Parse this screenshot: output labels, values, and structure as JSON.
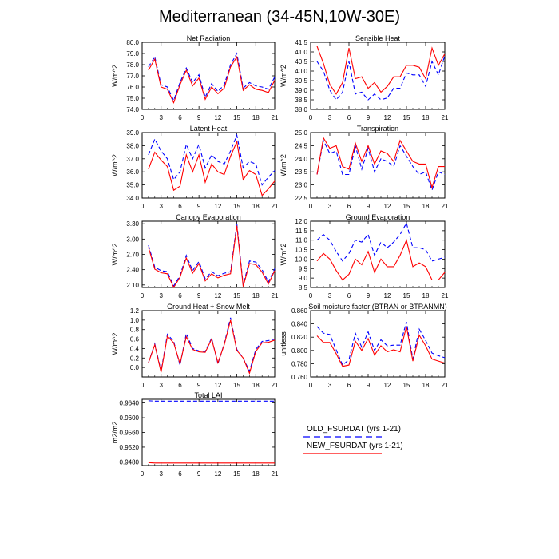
{
  "figure": {
    "title": "Mediterranean (34-45N,10W-30E)"
  },
  "legend": {
    "old_label": "OLD_FSURDAT (yrs 1-21)",
    "new_label": "NEW_FSURDAT (yrs 1-21)",
    "old_color": "#0000ff",
    "new_color": "#ff0000",
    "old_style": "dashed",
    "new_style": "solid"
  },
  "chart_data": [
    {
      "type": "line",
      "title": "Net Radiation",
      "ylabel": "W/m^2",
      "xlim": [
        0,
        21
      ],
      "ylim": [
        74.0,
        80.0
      ],
      "xticks": [
        0,
        3,
        6,
        9,
        12,
        15,
        18,
        21
      ],
      "yticks": [
        74.0,
        75.0,
        76.0,
        77.0,
        78.0,
        79.0,
        80.0
      ],
      "ytick_labels": [
        "74.0",
        "75.0",
        "76.0",
        "77.0",
        "78.0",
        "79.0",
        "80.0"
      ],
      "x": [
        1,
        2,
        3,
        4,
        5,
        6,
        7,
        8,
        9,
        10,
        11,
        12,
        13,
        14,
        15,
        16,
        17,
        18,
        19,
        20,
        21
      ],
      "series": [
        {
          "name": "OLD_FSURDAT (yrs 1-21)",
          "values": [
            77.8,
            78.7,
            76.2,
            76.0,
            74.8,
            76.4,
            77.7,
            76.4,
            77.1,
            75.1,
            76.3,
            75.6,
            76.2,
            78.0,
            79.0,
            75.9,
            76.4,
            76.1,
            76.0,
            75.8,
            76.9
          ]
        },
        {
          "name": "NEW_FSURDAT (yrs 1-21)",
          "values": [
            77.5,
            78.5,
            76.0,
            75.8,
            74.6,
            76.2,
            77.5,
            76.1,
            76.8,
            74.9,
            76.0,
            75.4,
            75.9,
            77.8,
            78.7,
            75.7,
            76.2,
            75.8,
            75.7,
            75.5,
            76.6
          ]
        }
      ]
    },
    {
      "type": "line",
      "title": "Sensible Heat",
      "ylabel": "W/m^2",
      "xlim": [
        0,
        21
      ],
      "ylim": [
        38.0,
        41.5
      ],
      "xticks": [
        0,
        3,
        6,
        9,
        12,
        15,
        18,
        21
      ],
      "yticks": [
        38.0,
        38.5,
        39.0,
        39.5,
        40.0,
        40.5,
        41.0,
        41.5
      ],
      "ytick_labels": [
        "38.0",
        "38.5",
        "39.0",
        "39.5",
        "40.0",
        "40.5",
        "41.0",
        "41.5"
      ],
      "x": [
        1,
        2,
        3,
        4,
        5,
        6,
        7,
        8,
        9,
        10,
        11,
        12,
        13,
        14,
        15,
        16,
        17,
        18,
        19,
        20,
        21
      ],
      "series": [
        {
          "name": "OLD_FSURDAT (yrs 1-21)",
          "values": [
            40.5,
            40.0,
            39.0,
            38.5,
            38.9,
            40.5,
            38.8,
            38.9,
            38.5,
            38.8,
            38.5,
            38.6,
            39.1,
            39.1,
            39.9,
            39.8,
            39.8,
            39.2,
            40.5,
            39.8,
            40.8
          ]
        },
        {
          "name": "NEW_FSURDAT (yrs 1-21)",
          "values": [
            41.3,
            40.4,
            39.3,
            38.8,
            39.4,
            41.2,
            39.6,
            39.7,
            39.1,
            39.4,
            38.9,
            39.2,
            39.7,
            39.7,
            40.3,
            40.3,
            40.2,
            39.6,
            41.2,
            40.3,
            40.9
          ]
        }
      ]
    },
    {
      "type": "line",
      "title": "Latent Heat",
      "ylabel": "W/m^2",
      "xlim": [
        0,
        21
      ],
      "ylim": [
        34.0,
        39.0
      ],
      "xticks": [
        0,
        3,
        6,
        9,
        12,
        15,
        18,
        21
      ],
      "yticks": [
        34.0,
        35.0,
        36.0,
        37.0,
        38.0,
        39.0
      ],
      "ytick_labels": [
        "34.0",
        "35.0",
        "36.0",
        "37.0",
        "38.0",
        "39.0"
      ],
      "x": [
        1,
        2,
        3,
        4,
        5,
        6,
        7,
        8,
        9,
        10,
        11,
        12,
        13,
        14,
        15,
        16,
        17,
        18,
        19,
        20,
        21
      ],
      "series": [
        {
          "name": "OLD_FSURDAT (yrs 1-21)",
          "values": [
            37.3,
            38.5,
            37.6,
            37.0,
            35.4,
            36.0,
            38.1,
            37.0,
            38.1,
            36.3,
            37.3,
            36.8,
            36.6,
            37.6,
            38.8,
            36.3,
            36.8,
            36.6,
            35.0,
            35.6,
            36.1
          ]
        },
        {
          "name": "NEW_FSURDAT (yrs 1-21)",
          "values": [
            36.2,
            37.5,
            36.9,
            36.4,
            34.6,
            34.9,
            37.3,
            36.0,
            37.3,
            35.2,
            36.6,
            36.0,
            35.8,
            37.2,
            38.3,
            35.4,
            36.1,
            35.8,
            34.2,
            34.7,
            35.3
          ]
        }
      ]
    },
    {
      "type": "line",
      "title": "Transpiration",
      "ylabel": "W/m^2",
      "xlim": [
        0,
        21
      ],
      "ylim": [
        22.5,
        25.0
      ],
      "xticks": [
        0,
        3,
        6,
        9,
        12,
        15,
        18,
        21
      ],
      "yticks": [
        22.5,
        23.0,
        23.5,
        24.0,
        24.5,
        25.0
      ],
      "ytick_labels": [
        "22.5",
        "23.0",
        "23.5",
        "24.0",
        "24.5",
        "25.0"
      ],
      "x": [
        1,
        2,
        3,
        4,
        5,
        6,
        7,
        8,
        9,
        10,
        11,
        12,
        13,
        14,
        15,
        16,
        17,
        18,
        19,
        20,
        21
      ],
      "series": [
        {
          "name": "OLD_FSURDAT (yrs 1-21)",
          "values": [
            23.4,
            24.7,
            24.2,
            24.3,
            23.4,
            23.4,
            24.5,
            23.6,
            24.4,
            23.5,
            24.0,
            23.9,
            23.7,
            24.5,
            24.1,
            23.7,
            23.4,
            23.5,
            22.8,
            23.5,
            23.4
          ]
        },
        {
          "name": "NEW_FSURDAT (yrs 1-21)",
          "values": [
            23.4,
            24.8,
            24.4,
            24.5,
            23.7,
            23.6,
            24.6,
            23.9,
            24.5,
            23.8,
            24.3,
            24.2,
            23.9,
            24.7,
            24.3,
            23.9,
            23.8,
            23.8,
            22.9,
            23.7,
            23.7
          ]
        }
      ]
    },
    {
      "type": "line",
      "title": "Canopy Evaporation",
      "ylabel": "W/m^2",
      "xlim": [
        0,
        21
      ],
      "ylim": [
        2.05,
        3.35
      ],
      "xticks": [
        0,
        3,
        6,
        9,
        12,
        15,
        18,
        21
      ],
      "yticks": [
        2.1,
        2.4,
        2.7,
        3.0,
        3.3
      ],
      "ytick_labels": [
        "2.10",
        "2.40",
        "2.70",
        "3.00",
        "3.30"
      ],
      "x": [
        1,
        2,
        3,
        4,
        5,
        6,
        7,
        8,
        9,
        10,
        11,
        12,
        13,
        14,
        15,
        16,
        17,
        18,
        19,
        20,
        21
      ],
      "series": [
        {
          "name": "OLD_FSURDAT (yrs 1-21)",
          "values": [
            2.88,
            2.45,
            2.38,
            2.36,
            2.08,
            2.28,
            2.68,
            2.38,
            2.56,
            2.22,
            2.36,
            2.28,
            2.33,
            2.36,
            3.3,
            2.1,
            2.57,
            2.55,
            2.4,
            2.16,
            2.42
          ]
        },
        {
          "name": "NEW_FSURDAT (yrs 1-21)",
          "values": [
            2.84,
            2.41,
            2.34,
            2.32,
            2.05,
            2.25,
            2.63,
            2.33,
            2.52,
            2.18,
            2.32,
            2.24,
            2.29,
            2.32,
            3.26,
            2.07,
            2.52,
            2.5,
            2.35,
            2.12,
            2.38
          ]
        }
      ]
    },
    {
      "type": "line",
      "title": "Ground Evaporation",
      "ylabel": "W/m^2",
      "xlim": [
        0,
        21
      ],
      "ylim": [
        8.5,
        12.0
      ],
      "xticks": [
        0,
        3,
        6,
        9,
        12,
        15,
        18,
        21
      ],
      "yticks": [
        8.5,
        9.0,
        9.5,
        10.0,
        10.5,
        11.0,
        11.5,
        12.0
      ],
      "ytick_labels": [
        "8.5",
        "9.0",
        "9.5",
        "10.0",
        "10.5",
        "11.0",
        "11.5",
        "12.0"
      ],
      "x": [
        1,
        2,
        3,
        4,
        5,
        6,
        7,
        8,
        9,
        10,
        11,
        12,
        13,
        14,
        15,
        16,
        17,
        18,
        19,
        20,
        21
      ],
      "series": [
        {
          "name": "OLD_FSURDAT (yrs 1-21)",
          "values": [
            11.0,
            11.3,
            11.0,
            10.4,
            9.9,
            10.3,
            11.0,
            10.9,
            11.3,
            10.2,
            10.9,
            10.6,
            10.9,
            11.3,
            11.9,
            10.6,
            10.6,
            10.5,
            9.9,
            10.0,
            10.1
          ]
        },
        {
          "name": "NEW_FSURDAT (yrs 1-21)",
          "values": [
            9.9,
            10.3,
            10.0,
            9.4,
            8.9,
            9.2,
            10.0,
            9.7,
            10.4,
            9.3,
            10.0,
            9.6,
            9.6,
            10.2,
            11.0,
            9.6,
            9.8,
            9.6,
            8.9,
            8.9,
            9.3
          ]
        }
      ]
    },
    {
      "type": "line",
      "title": "Ground Heat + Snow Melt",
      "ylabel": "W/m^2",
      "xlim": [
        0,
        21
      ],
      "ylim": [
        -0.2,
        1.2
      ],
      "xticks": [
        0,
        3,
        6,
        9,
        12,
        15,
        18,
        21
      ],
      "yticks": [
        0.0,
        0.2,
        0.4,
        0.6,
        0.8,
        1.0,
        1.2
      ],
      "ytick_labels": [
        "0.0",
        "0.2",
        "0.4",
        "0.6",
        "0.8",
        "1.0",
        "1.2"
      ],
      "x": [
        1,
        2,
        3,
        4,
        5,
        6,
        7,
        8,
        9,
        10,
        11,
        12,
        13,
        14,
        15,
        16,
        17,
        18,
        19,
        20,
        21
      ],
      "series": [
        {
          "name": "OLD_FSURDAT (yrs 1-21)",
          "values": [
            0.1,
            0.5,
            -0.08,
            0.7,
            0.55,
            0.05,
            0.72,
            0.4,
            0.35,
            0.34,
            0.62,
            0.08,
            0.5,
            1.05,
            0.38,
            0.2,
            -0.08,
            0.38,
            0.55,
            0.57,
            0.6
          ]
        },
        {
          "name": "NEW_FSURDAT (yrs 1-21)",
          "values": [
            0.1,
            0.48,
            -0.1,
            0.66,
            0.52,
            0.08,
            0.65,
            0.38,
            0.33,
            0.32,
            0.6,
            0.1,
            0.48,
            1.0,
            0.36,
            0.2,
            -0.12,
            0.34,
            0.52,
            0.53,
            0.58
          ]
        }
      ]
    },
    {
      "type": "line",
      "title": "Soil moisture factor (BTRAN or BTRANMN)",
      "ylabel": "unitless",
      "xlim": [
        0,
        21
      ],
      "ylim": [
        0.76,
        0.86
      ],
      "xticks": [
        0,
        3,
        6,
        9,
        12,
        15,
        18,
        21
      ],
      "yticks": [
        0.76,
        0.78,
        0.8,
        0.82,
        0.84,
        0.86
      ],
      "ytick_labels": [
        "0.760",
        "0.780",
        "0.800",
        "0.820",
        "0.840",
        "0.860"
      ],
      "x": [
        1,
        2,
        3,
        4,
        5,
        6,
        7,
        8,
        9,
        10,
        11,
        12,
        13,
        14,
        15,
        16,
        17,
        18,
        19,
        20,
        21
      ],
      "series": [
        {
          "name": "OLD_FSURDAT (yrs 1-21)",
          "values": [
            0.836,
            0.826,
            0.824,
            0.801,
            0.778,
            0.786,
            0.826,
            0.805,
            0.828,
            0.8,
            0.816,
            0.807,
            0.808,
            0.808,
            0.843,
            0.787,
            0.832,
            0.815,
            0.796,
            0.792,
            0.789
          ]
        },
        {
          "name": "NEW_FSURDAT (yrs 1-21)",
          "values": [
            0.822,
            0.812,
            0.812,
            0.795,
            0.776,
            0.778,
            0.814,
            0.8,
            0.818,
            0.793,
            0.807,
            0.798,
            0.801,
            0.798,
            0.836,
            0.784,
            0.823,
            0.807,
            0.787,
            0.784,
            0.781
          ]
        }
      ]
    },
    {
      "type": "line",
      "title": "Total LAI",
      "ylabel": "m2/m2",
      "xlim": [
        0,
        21
      ],
      "ylim": [
        0.947,
        0.965
      ],
      "xticks": [
        0,
        3,
        6,
        9,
        12,
        15,
        18,
        21
      ],
      "yticks": [
        0.948,
        0.952,
        0.956,
        0.96,
        0.964
      ],
      "ytick_labels": [
        "0.9480",
        "0.9520",
        "0.9560",
        "0.9600",
        "0.9640"
      ],
      "x": [
        1,
        2,
        3,
        4,
        5,
        6,
        7,
        8,
        9,
        10,
        11,
        12,
        13,
        14,
        15,
        16,
        17,
        18,
        19,
        20,
        21
      ],
      "series": [
        {
          "name": "OLD_FSURDAT (yrs 1-21)",
          "values": [
            0.9646,
            0.9645,
            0.9645,
            0.9645,
            0.9645,
            0.9645,
            0.9645,
            0.9645,
            0.9645,
            0.9645,
            0.9645,
            0.9645,
            0.9645,
            0.9645,
            0.9645,
            0.9645,
            0.9645,
            0.9645,
            0.9645,
            0.9645,
            0.9645
          ]
        },
        {
          "name": "NEW_FSURDAT (yrs 1-21)",
          "values": [
            0.9478,
            0.9477,
            0.9477,
            0.9477,
            0.9477,
            0.9477,
            0.9477,
            0.9477,
            0.9477,
            0.9477,
            0.9477,
            0.9477,
            0.9477,
            0.9477,
            0.9477,
            0.9477,
            0.9477,
            0.9477,
            0.9477,
            0.9477,
            0.9477
          ]
        }
      ]
    }
  ]
}
